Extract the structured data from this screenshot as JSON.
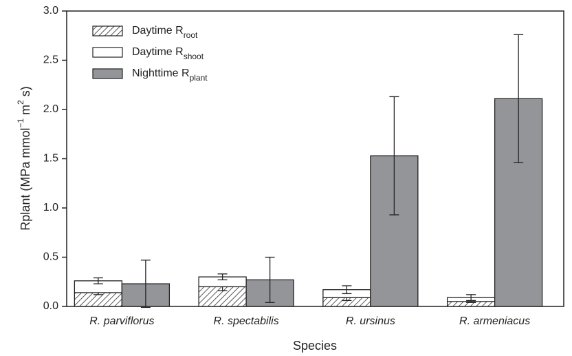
{
  "chart_data": {
    "type": "bar",
    "xlabel": "Species",
    "ylabel": [
      "Rplant (MPa mmol",
      "−1",
      " m",
      "2",
      " s)"
    ],
    "categories": [
      "R. parviflorus",
      "R. spectabilis",
      "R. ursinus",
      "R. armeniacus"
    ],
    "series": [
      {
        "name": "Daytime R",
        "name_sub": "root",
        "color": "hatch",
        "stacked": true,
        "values": [
          0.14,
          0.2,
          0.09,
          0.05
        ],
        "errors": [
          0.02,
          0.04,
          0.03,
          0.01
        ]
      },
      {
        "name": "Daytime R",
        "name_sub": "shoot",
        "color": "#ffffff",
        "stacked": true,
        "values": [
          0.12,
          0.1,
          0.08,
          0.04
        ],
        "errors": [
          0.03,
          0.03,
          0.04,
          0.03
        ]
      },
      {
        "name": "Nighttime R",
        "name_sub": "plant",
        "color": "#939598",
        "stacked": false,
        "values": [
          0.23,
          0.27,
          1.53,
          2.11
        ],
        "errors": [
          0.24,
          0.23,
          0.6,
          0.65
        ]
      }
    ],
    "ylim": [
      0,
      3
    ],
    "yticks": [
      {
        "value": 0,
        "label": "0.0"
      },
      {
        "value": 0.5,
        "label": "0.5"
      },
      {
        "value": 1,
        "label": "1.0"
      },
      {
        "value": 1.5,
        "label": "1.5"
      },
      {
        "value": 2,
        "label": "2.0"
      },
      {
        "value": 2.5,
        "label": "2.5"
      },
      {
        "value": 3,
        "label": "3.0"
      }
    ]
  }
}
